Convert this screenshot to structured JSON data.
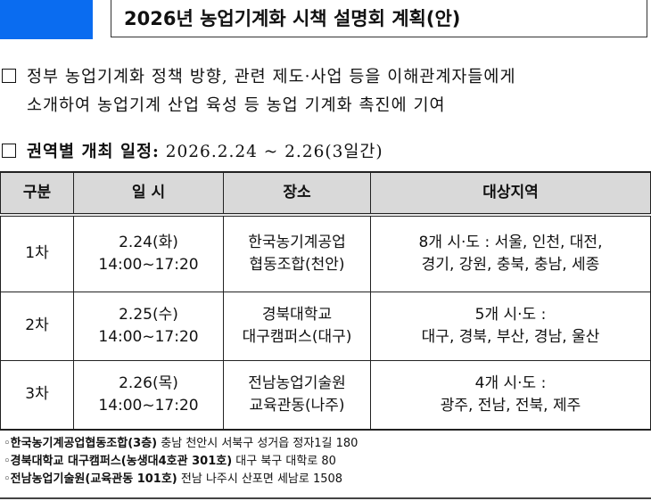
{
  "header": {
    "title": "2026년 농업기계화 시책 설명회 계획(안)",
    "accent_color": "#0a6cf0"
  },
  "purpose": {
    "line1": "정부 농업기계화 정책 방향, 관련 제도·사업 등을 이해관계자들에게",
    "line2": "소개하여 농업기계 산업 육성 등 농업 기계화 촉진에 기여"
  },
  "schedule": {
    "label": "권역별 개최 일정:",
    "value": "2026.2.24 ~ 2.26(3일간)"
  },
  "table": {
    "headers": [
      "구분",
      "일 시",
      "장소",
      "대상지역"
    ],
    "rows": [
      {
        "round": "1차",
        "date": "2.24(화)",
        "time": "14:00~17:20",
        "place1": "한국농기계공업",
        "place2": "협동조합(천안)",
        "region1": "8개 시·도 : 서울, 인천, 대전,",
        "region2": "경기, 강원, 충북, 충남, 세종"
      },
      {
        "round": "2차",
        "date": "2.25(수)",
        "time": "14:00~17:20",
        "place1": "경북대학교",
        "place2": "대구캠퍼스(대구)",
        "region1": "5개 시·도 :",
        "region2": "대구, 경북, 부산, 경남, 울산"
      },
      {
        "round": "3차",
        "date": "2.26(목)",
        "time": "14:00~17:20",
        "place1": "전남농업기술원",
        "place2": "교육관동(나주)",
        "region1": "4개 시·도 :",
        "region2": "광주, 전남, 전북, 제주"
      }
    ]
  },
  "notes": [
    {
      "name": "한국농기계공업협동조합(3층)",
      "addr": "충남 천안시 서북구 성거읍 정자1길 180"
    },
    {
      "name": "경북대학교 대구캠퍼스(농생대4호관 301호)",
      "addr": "대구 북구 대학로 80"
    },
    {
      "name": "전남농업기술원(교육관동 101호)",
      "addr": "전남 나주시 산포면 세남로 1508"
    }
  ]
}
